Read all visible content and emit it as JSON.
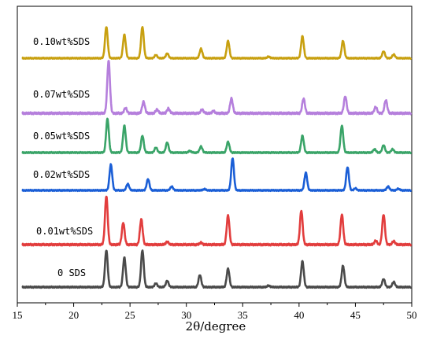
{
  "chart_data": {
    "type": "line",
    "title": "",
    "xlabel": "2θ/degree",
    "ylabel": "",
    "xlim": [
      15,
      50
    ],
    "x_ticks": [
      "15",
      "20",
      "25",
      "30",
      "35",
      "40",
      "45",
      "50"
    ],
    "grid": false,
    "legend": "none",
    "series": [
      {
        "name": "0.10wt%SDS",
        "color": "#c8a010",
        "baseline": 0,
        "peaks": [
          [
            22.9,
            1.0
          ],
          [
            24.5,
            0.75
          ],
          [
            26.1,
            1.0
          ],
          [
            27.3,
            0.1
          ],
          [
            28.3,
            0.15
          ],
          [
            31.3,
            0.3
          ],
          [
            33.7,
            0.55
          ],
          [
            37.3,
            0.05
          ],
          [
            40.3,
            0.7
          ],
          [
            43.9,
            0.55
          ],
          [
            47.5,
            0.22
          ],
          [
            48.4,
            0.12
          ]
        ]
      },
      {
        "name": "0.07wt%SDS",
        "color": "#b57fdc",
        "baseline": 0,
        "peaks": [
          [
            23.1,
            1.0
          ],
          [
            24.6,
            0.1
          ],
          [
            26.2,
            0.22
          ],
          [
            27.4,
            0.07
          ],
          [
            28.4,
            0.09
          ],
          [
            31.4,
            0.07
          ],
          [
            32.4,
            0.04
          ],
          [
            34.0,
            0.28
          ],
          [
            40.4,
            0.28
          ],
          [
            44.1,
            0.32
          ],
          [
            46.8,
            0.12
          ],
          [
            47.7,
            0.25
          ]
        ]
      },
      {
        "name": "0.05wt%SDS",
        "color": "#3aa468",
        "baseline": 0,
        "peaks": [
          [
            23.0,
            1.0
          ],
          [
            24.5,
            0.8
          ],
          [
            26.1,
            0.5
          ],
          [
            27.3,
            0.15
          ],
          [
            28.3,
            0.3
          ],
          [
            30.3,
            0.05
          ],
          [
            31.3,
            0.18
          ],
          [
            33.7,
            0.32
          ],
          [
            40.3,
            0.5
          ],
          [
            43.8,
            0.8
          ],
          [
            46.7,
            0.1
          ],
          [
            47.5,
            0.22
          ],
          [
            48.3,
            0.1
          ]
        ]
      },
      {
        "name": "0.02wt%SDS",
        "color": "#1a5ed6",
        "baseline": 0,
        "peaks": [
          [
            23.3,
            0.8
          ],
          [
            24.8,
            0.2
          ],
          [
            26.6,
            0.35
          ],
          [
            28.7,
            0.12
          ],
          [
            31.6,
            0.04
          ],
          [
            34.1,
            1.0
          ],
          [
            40.6,
            0.55
          ],
          [
            44.3,
            0.72
          ],
          [
            45.0,
            0.06
          ],
          [
            47.9,
            0.12
          ],
          [
            48.8,
            0.05
          ]
        ]
      },
      {
        "name": "0.01wt%SDS",
        "color": "#e23d3d",
        "baseline": 0,
        "peaks": [
          [
            22.9,
            1.0
          ],
          [
            24.4,
            0.45
          ],
          [
            26.0,
            0.52
          ],
          [
            28.3,
            0.06
          ],
          [
            31.3,
            0.04
          ],
          [
            33.7,
            0.6
          ],
          [
            40.2,
            0.7
          ],
          [
            43.8,
            0.62
          ],
          [
            46.8,
            0.08
          ],
          [
            47.5,
            0.62
          ],
          [
            48.4,
            0.07
          ]
        ]
      },
      {
        "name": "0 SDS",
        "color": "#4a4a4a",
        "baseline": 0,
        "peaks": [
          [
            22.9,
            1.0
          ],
          [
            24.5,
            0.8
          ],
          [
            26.1,
            1.0
          ],
          [
            27.3,
            0.1
          ],
          [
            28.3,
            0.17
          ],
          [
            31.2,
            0.33
          ],
          [
            33.7,
            0.5
          ],
          [
            37.3,
            0.04
          ],
          [
            40.3,
            0.7
          ],
          [
            43.9,
            0.58
          ],
          [
            47.5,
            0.22
          ],
          [
            48.4,
            0.14
          ]
        ]
      }
    ]
  }
}
